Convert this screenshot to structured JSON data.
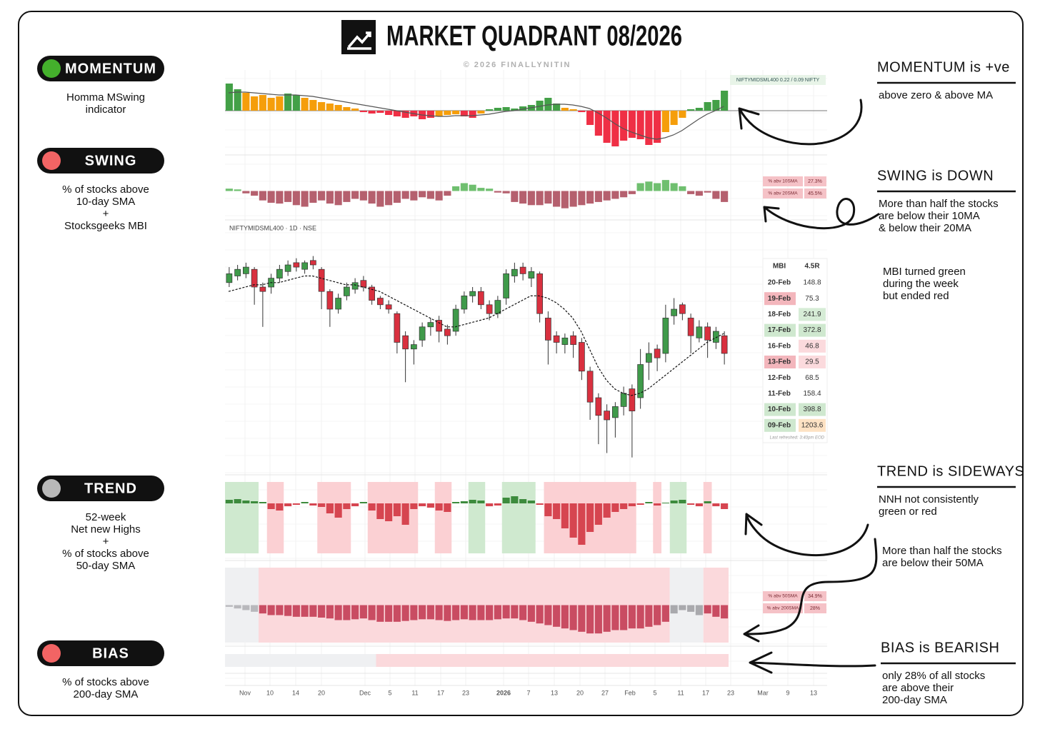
{
  "header": {
    "title": "MARKET QUADRANT 08/2026",
    "credit": "© 2026 FINALLYNITIN"
  },
  "indicators": [
    {
      "name": "MOMENTUM",
      "dot": "#44b02c",
      "desc": [
        "Homma MSwing",
        "indicator"
      ]
    },
    {
      "name": "SWING",
      "dot": "#f26464",
      "desc": [
        "% of stocks above",
        "10-day SMA",
        "+",
        "Stocksgeeks MBI"
      ]
    },
    {
      "name": "TREND",
      "dot": "#b8b8b8",
      "desc": [
        "52-week",
        "Net new Highs",
        "+",
        "% of stocks above",
        "50-day SMA"
      ]
    },
    {
      "name": "BIAS",
      "dot": "#f26464",
      "desc": [
        "% of stocks above",
        "200-day SMA"
      ]
    }
  ],
  "annotations": [
    {
      "heading": "MOMENTUM is +ve",
      "text": [
        "above zero & above MA"
      ]
    },
    {
      "heading": "SWING is DOWN",
      "text": [
        "More than half the stocks",
        "are below their 10MA",
        "& below their 20MA"
      ]
    },
    {
      "text": [
        "MBI turned green",
        "during the week",
        "but ended red"
      ]
    },
    {
      "heading": "TREND is SIDEWAYS",
      "text": [
        "NNH not consistently",
        "green or red"
      ]
    },
    {
      "text": [
        "More than half the stocks",
        "are below their 50MA"
      ]
    },
    {
      "heading": "BIAS is BEARISH",
      "text": [
        "only 28% of all stocks",
        "are above their",
        "200-day SMA"
      ]
    }
  ],
  "axis_labels": [
    "Nov",
    "10",
    "14",
    "20",
    "Dec",
    "5",
    "11",
    "17",
    "23",
    "2026",
    "7",
    "13",
    "20",
    "27",
    "Feb",
    "5",
    "11",
    "17",
    "23",
    "Mar",
    "9",
    "13"
  ],
  "mbi": {
    "headers": [
      "MBI",
      "4.5R"
    ],
    "rows": [
      {
        "date": "20-Feb",
        "value": "148.8"
      },
      {
        "date": "19-Feb",
        "value": "75.3",
        "date_bg": "#f3b6bc"
      },
      {
        "date": "18-Feb",
        "value": "241.9",
        "value_bg": "#d6ecd6"
      },
      {
        "date": "17-Feb",
        "value": "372.8",
        "date_bg": "#cfe8cf",
        "value_bg": "#cfe8cf"
      },
      {
        "date": "16-Feb",
        "value": "46.8",
        "value_bg": "#fbdadd"
      },
      {
        "date": "13-Feb",
        "value": "29.5",
        "date_bg": "#f3b6bc",
        "value_bg": "#fbdadd"
      },
      {
        "date": "12-Feb",
        "value": "68.5"
      },
      {
        "date": "11-Feb",
        "value": "158.4"
      },
      {
        "date": "10-Feb",
        "value": "398.8",
        "date_bg": "#cfe8cf",
        "value_bg": "#cfe8cf"
      },
      {
        "date": "09-Feb",
        "value": "1203.6",
        "date_bg": "#cfe8cf",
        "value_bg": "#fde2c4"
      }
    ],
    "footnote": "Last refreshed: 3:40pm EOD"
  },
  "chart_data": [
    {
      "type": "bar",
      "legend_label": "NIFTYMIDSML400  0.22 / 0.09  NIFTY",
      "ylim": [
        -55,
        55
      ],
      "colors": {
        "up": "#43a047",
        "fade": "#f59e0b",
        "down": "#ef2f45",
        "ma": "#555"
      },
      "values": [
        38,
        30,
        25,
        20,
        22,
        18,
        20,
        24,
        22,
        18,
        15,
        12,
        10,
        8,
        5,
        3,
        -2,
        -4,
        -3,
        -6,
        -8,
        -10,
        -8,
        -12,
        -10,
        -8,
        -6,
        -5,
        -8,
        -10,
        -4,
        2,
        4,
        5,
        3,
        6,
        8,
        14,
        18,
        10,
        4,
        2,
        -2,
        -20,
        -35,
        -45,
        -50,
        -42,
        -38,
        -40,
        -48,
        -45,
        -30,
        -20,
        -10,
        2,
        4,
        12,
        15,
        28
      ],
      "ma": [
        25,
        26,
        26,
        25,
        24,
        23,
        22,
        22,
        22,
        21,
        20,
        18,
        16,
        14,
        12,
        10,
        8,
        6,
        4,
        2,
        0,
        -2,
        -4,
        -6,
        -7,
        -8,
        -8,
        -7,
        -7,
        -7,
        -6,
        -5,
        -3,
        -1,
        0,
        2,
        4,
        6,
        8,
        9,
        9,
        8,
        6,
        3,
        -3,
        -10,
        -18,
        -25,
        -30,
        -34,
        -38,
        -40,
        -38,
        -34,
        -28,
        -20,
        -12,
        -5,
        0,
        6
      ]
    },
    {
      "type": "bar",
      "ylim": [
        -25,
        25
      ],
      "colors": {
        "up": "#6fbf6f",
        "down": "#b5606e"
      },
      "values": [
        3,
        2,
        -3,
        -6,
        -12,
        -15,
        -16,
        -14,
        -18,
        -20,
        -15,
        -12,
        -16,
        -18,
        -14,
        -10,
        -12,
        -16,
        -20,
        -18,
        -15,
        -10,
        -12,
        -8,
        -10,
        -12,
        -6,
        6,
        10,
        8,
        4,
        3,
        -2,
        -3,
        -14,
        -16,
        -18,
        -18,
        -16,
        -20,
        -22,
        -20,
        -18,
        -16,
        -14,
        -12,
        -10,
        -8,
        -4,
        10,
        12,
        10,
        14,
        10,
        6,
        -4,
        -6,
        -2,
        -10,
        -14
      ],
      "chips": [
        {
          "label": "% abv 10SMA",
          "value": "27.3%"
        },
        {
          "label": "% abv 20SMA",
          "value": "45.5%"
        }
      ]
    },
    {
      "type": "candlestick",
      "title": "NIFTYMIDSML400 · 1D · NSE",
      "ylim": [
        0,
        100
      ],
      "colors": {
        "up": "#3f9a4a",
        "down": "#d9303f",
        "flat": "#ffffff",
        "ma": "#111"
      },
      "open": [
        82,
        85,
        86,
        88,
        80,
        80,
        84,
        87,
        91,
        88,
        92,
        88,
        78,
        70,
        76,
        79,
        83,
        80,
        75,
        72,
        68,
        58,
        52,
        56,
        62,
        65,
        61,
        60,
        70,
        76,
        78,
        72,
        68,
        75,
        85,
        89,
        84,
        86,
        66,
        58,
        54,
        58,
        55,
        42,
        30,
        24,
        21,
        26,
        34,
        30,
        46,
        52,
        50,
        67,
        72,
        66,
        57,
        62,
        55,
        58
      ],
      "high": [
        89,
        90,
        91,
        89,
        82,
        86,
        90,
        92,
        93,
        92,
        94,
        89,
        79,
        77,
        82,
        84,
        85,
        81,
        76,
        74,
        69,
        60,
        56,
        64,
        66,
        67,
        63,
        72,
        78,
        80,
        80,
        74,
        76,
        88,
        91,
        91,
        89,
        87,
        69,
        60,
        59,
        60,
        57,
        44,
        32,
        27,
        28,
        35,
        36,
        52,
        55,
        54,
        72,
        75,
        73,
        68,
        65,
        64,
        62,
        60
      ],
      "low": [
        80,
        83,
        84,
        72,
        62,
        77,
        82,
        85,
        87,
        86,
        88,
        70,
        62,
        68,
        74,
        77,
        78,
        72,
        70,
        68,
        50,
        37,
        45,
        53,
        58,
        55,
        54,
        58,
        68,
        73,
        70,
        65,
        66,
        72,
        82,
        83,
        80,
        64,
        45,
        50,
        50,
        48,
        38,
        20,
        9,
        5,
        12,
        22,
        3,
        25,
        38,
        42,
        46,
        63,
        65,
        50,
        55,
        48,
        52,
        45
      ],
      "close": [
        86,
        88,
        89,
        80,
        78,
        84,
        88,
        90,
        89,
        91,
        90,
        78,
        70,
        75,
        80,
        82,
        80,
        74,
        72,
        70,
        55,
        52,
        54,
        62,
        64,
        60,
        58,
        70,
        76,
        78,
        72,
        68,
        74,
        86,
        88,
        86,
        87,
        68,
        56,
        55,
        57,
        54,
        42,
        28,
        22,
        20,
        26,
        32,
        24,
        45,
        50,
        48,
        66,
        70,
        68,
        58,
        62,
        56,
        60,
        50
      ],
      "ma": [
        78,
        79,
        80,
        81,
        81,
        82,
        82,
        83,
        84,
        85,
        85,
        84,
        83,
        82,
        81,
        81,
        80,
        79,
        78,
        76,
        74,
        72,
        70,
        68,
        66,
        64,
        62,
        62,
        63,
        64,
        65,
        66,
        68,
        70,
        72,
        74,
        76,
        76,
        75,
        73,
        70,
        66,
        60,
        52,
        44,
        38,
        34,
        32,
        31,
        32,
        34,
        37,
        40,
        43,
        46,
        49,
        52,
        55,
        57,
        59
      ]
    },
    {
      "type": "bar",
      "ylim": [
        -70,
        30
      ],
      "colors": {
        "up": "#3d8b3d",
        "down": "#d64550"
      },
      "values": [
        5,
        6,
        4,
        3,
        2,
        -8,
        -10,
        -4,
        -2,
        2,
        -3,
        -5,
        -14,
        -20,
        -8,
        -4,
        2,
        -10,
        -22,
        -25,
        -18,
        -30,
        -8,
        -4,
        -6,
        -10,
        -12,
        2,
        3,
        5,
        4,
        -4,
        -3,
        8,
        10,
        6,
        4,
        -2,
        -18,
        -22,
        -35,
        -48,
        -58,
        -40,
        -30,
        -20,
        -12,
        -8,
        -4,
        -2,
        2,
        -3,
        1,
        4,
        5,
        -2,
        -4,
        3,
        -4,
        -8
      ],
      "bands": [
        {
          "from": 0,
          "to": 3,
          "color": "#cfe9cf"
        },
        {
          "from": 5,
          "to": 6,
          "color": "#fbd0d3"
        },
        {
          "from": 11,
          "to": 14,
          "color": "#fbd0d3"
        },
        {
          "from": 17,
          "to": 22,
          "color": "#fbd0d3"
        },
        {
          "from": 25,
          "to": 26,
          "color": "#fbd0d3"
        },
        {
          "from": 29,
          "to": 30,
          "color": "#cfe9cf"
        },
        {
          "from": 33,
          "to": 36,
          "color": "#cfe9cf"
        },
        {
          "from": 38,
          "to": 48,
          "color": "#fbd0d3"
        },
        {
          "from": 51,
          "to": 51,
          "color": "#fbd0d3"
        },
        {
          "from": 53,
          "to": 54,
          "color": "#cfe9cf"
        },
        {
          "from": 57,
          "to": 57,
          "color": "#fbd0d3"
        }
      ]
    },
    {
      "type": "bar",
      "ylim": [
        -45,
        45
      ],
      "colors": {
        "up": "#a9a9ad",
        "down": "#c04a5e"
      },
      "values": [
        -2,
        -4,
        -6,
        -8,
        -10,
        -12,
        -12,
        -13,
        -14,
        -14,
        -14,
        -15,
        -16,
        -18,
        -18,
        -17,
        -16,
        -18,
        -20,
        -20,
        -20,
        -19,
        -18,
        -17,
        -17,
        -18,
        -19,
        -18,
        -17,
        -18,
        -18,
        -18,
        -17,
        -16,
        -16,
        -18,
        -20,
        -22,
        -24,
        -26,
        -28,
        -30,
        -32,
        -34,
        -34,
        -32,
        -30,
        -30,
        -28,
        -28,
        -26,
        -24,
        -20,
        -10,
        -6,
        -8,
        -12,
        -10,
        -14,
        -16
      ],
      "bands": [
        {
          "from": 0,
          "to": 3,
          "color": "#eff0f2",
          "bar_color": "#b8b8bc"
        },
        {
          "from": 4,
          "to": 52,
          "color": "#fbd9dc",
          "bar_color": "#c94c62"
        },
        {
          "from": 53,
          "to": 56,
          "color": "#eff0f2",
          "bar_color": "#a9a9ad"
        },
        {
          "from": 57,
          "to": 59,
          "color": "#fbd9dc",
          "bar_color": "#c94c62"
        }
      ],
      "chips": [
        {
          "label": "% abv 50SMA",
          "value": "34.9%"
        },
        {
          "label": "% abv 200SMA",
          "value": "28%"
        }
      ]
    },
    {
      "type": "band",
      "bands": [
        {
          "from": 0,
          "to": 17,
          "color": "#eff0f2"
        },
        {
          "from": 18,
          "to": 59,
          "color": "#fbd9dc"
        }
      ]
    }
  ]
}
